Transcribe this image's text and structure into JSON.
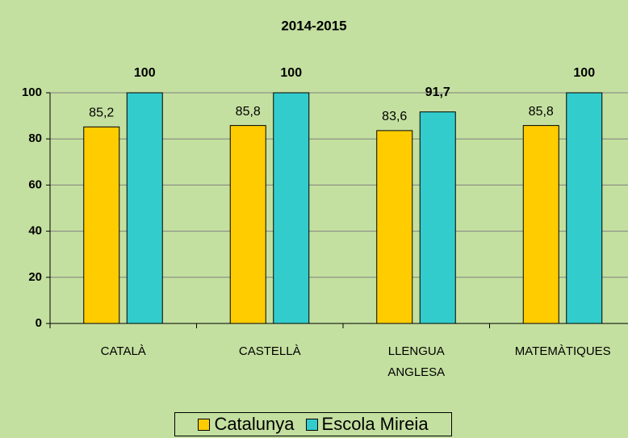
{
  "chart_data": {
    "type": "bar",
    "title": "2014-2015",
    "categories": [
      "CATALÀ",
      "CASTELLÀ",
      "LLENGUA ANGLESA",
      "MATEMÀTIQUES"
    ],
    "series": [
      {
        "name": "Catalunya",
        "color": "#ffcc00",
        "values": [
          85.2,
          85.8,
          83.6,
          85.8
        ],
        "value_labels": [
          "85,2",
          "85,8",
          "83,6",
          "85,8"
        ]
      },
      {
        "name": "Escola Mireia",
        "color": "#33cccc",
        "values": [
          100,
          100,
          91.7,
          100
        ],
        "value_labels": [
          "100",
          "100",
          "91,7",
          "100"
        ]
      }
    ],
    "ylim": [
      0,
      100
    ],
    "yticks": [
      0,
      20,
      40,
      60,
      80,
      100
    ],
    "grid": true,
    "legend": "bottom"
  }
}
